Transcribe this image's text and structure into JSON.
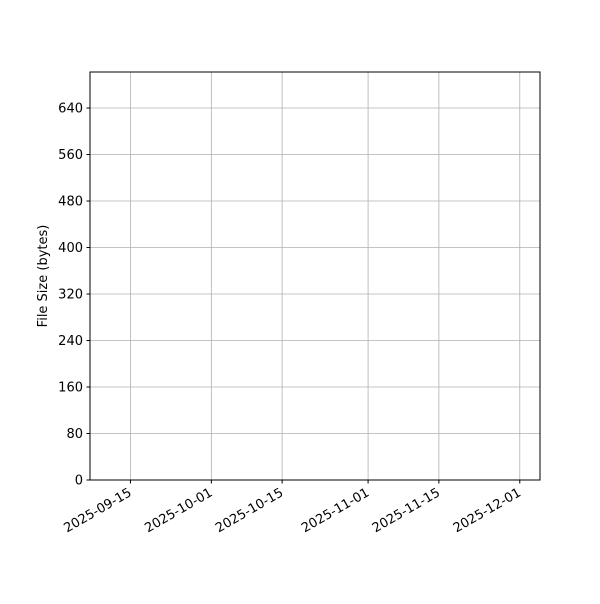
{
  "chart_data": {
    "type": "line",
    "title": "",
    "xlabel": "",
    "ylabel": "File Size (bytes)",
    "x_type": "date",
    "xlim": [
      "2025-09-07",
      "2025-12-05"
    ],
    "ylim": [
      0,
      702
    ],
    "x_ticks": [
      "2025-09-15",
      "2025-10-01",
      "2025-10-15",
      "2025-11-01",
      "2025-11-15",
      "2025-12-01"
    ],
    "y_ticks": [
      0,
      80,
      160,
      240,
      320,
      400,
      480,
      560,
      640
    ],
    "grid": true,
    "series": [],
    "colors": {
      "grid": "#b0b0b0",
      "axes": "#000000"
    }
  }
}
